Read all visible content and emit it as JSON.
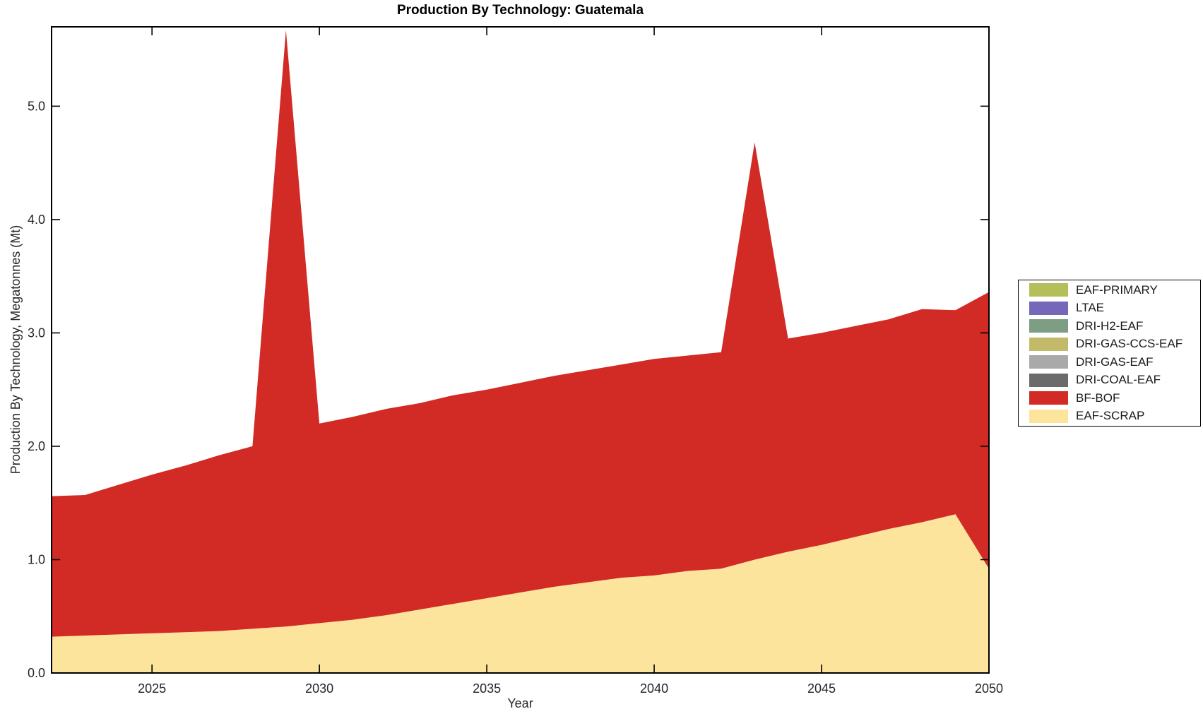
{
  "title": "Production By Technology: Guatemala",
  "chart_data": {
    "type": "area",
    "stacked": true,
    "title": "Production By Technology: Guatemala",
    "xlabel": "Year",
    "ylabel": "Production By Technology, Megatonnes (Mt)",
    "xlim": [
      2022,
      2050
    ],
    "ylim": [
      0,
      5.7
    ],
    "xticks": [
      2025,
      2030,
      2035,
      2040,
      2045,
      2050
    ],
    "yticks": [
      0,
      1,
      2,
      3,
      4,
      5
    ],
    "ytick_labels": [
      "0.0",
      "1.0",
      "2.0",
      "3.0",
      "4.0",
      "5.0"
    ],
    "grid": false,
    "legend_position": "outside-right",
    "stacking_note": "legend lists top-of-stack first; EAF-SCRAP is the bottom band, BF-BOF above it; all other series are zero everywhere",
    "x": [
      2022,
      2023,
      2024,
      2025,
      2026,
      2027,
      2028,
      2029,
      2030,
      2031,
      2032,
      2033,
      2034,
      2035,
      2036,
      2037,
      2038,
      2039,
      2040,
      2041,
      2042,
      2043,
      2044,
      2045,
      2046,
      2047,
      2048,
      2049,
      2050
    ],
    "series": [
      {
        "name": "EAF-PRIMARY",
        "color": "#b5bf5a",
        "values": 0
      },
      {
        "name": "LTAE",
        "color": "#7568b8",
        "values": 0
      },
      {
        "name": "DRI-H2-EAF",
        "color": "#7d9d85",
        "values": 0
      },
      {
        "name": "DRI-GAS-CCS-EAF",
        "color": "#c3ba69",
        "values": 0
      },
      {
        "name": "DRI-GAS-EAF",
        "color": "#a9a9a9",
        "values": 0
      },
      {
        "name": "DRI-COAL-EAF",
        "color": "#6b6b6b",
        "values": 0
      },
      {
        "name": "BF-BOF",
        "color": "#d22a24",
        "values": [
          1.24,
          1.24,
          1.32,
          1.4,
          1.47,
          1.55,
          1.61,
          5.26,
          1.76,
          1.79,
          1.82,
          1.82,
          1.84,
          1.84,
          1.85,
          1.86,
          1.87,
          1.88,
          1.91,
          1.9,
          1.91,
          3.68,
          1.88,
          1.87,
          1.86,
          1.85,
          1.88,
          1.8,
          2.44
        ]
      },
      {
        "name": "EAF-SCRAP",
        "color": "#fde49c",
        "values": [
          0.32,
          0.33,
          0.34,
          0.35,
          0.36,
          0.37,
          0.39,
          0.41,
          0.44,
          0.47,
          0.51,
          0.56,
          0.61,
          0.66,
          0.71,
          0.76,
          0.8,
          0.84,
          0.86,
          0.9,
          0.92,
          1.0,
          1.07,
          1.13,
          1.2,
          1.27,
          1.33,
          1.4,
          0.92
        ]
      }
    ],
    "visible_totals": {
      "2029_spike_total": 5.67,
      "2043_spike_total": 4.68,
      "2022_total": 1.56,
      "2050_total": 3.36
    }
  }
}
